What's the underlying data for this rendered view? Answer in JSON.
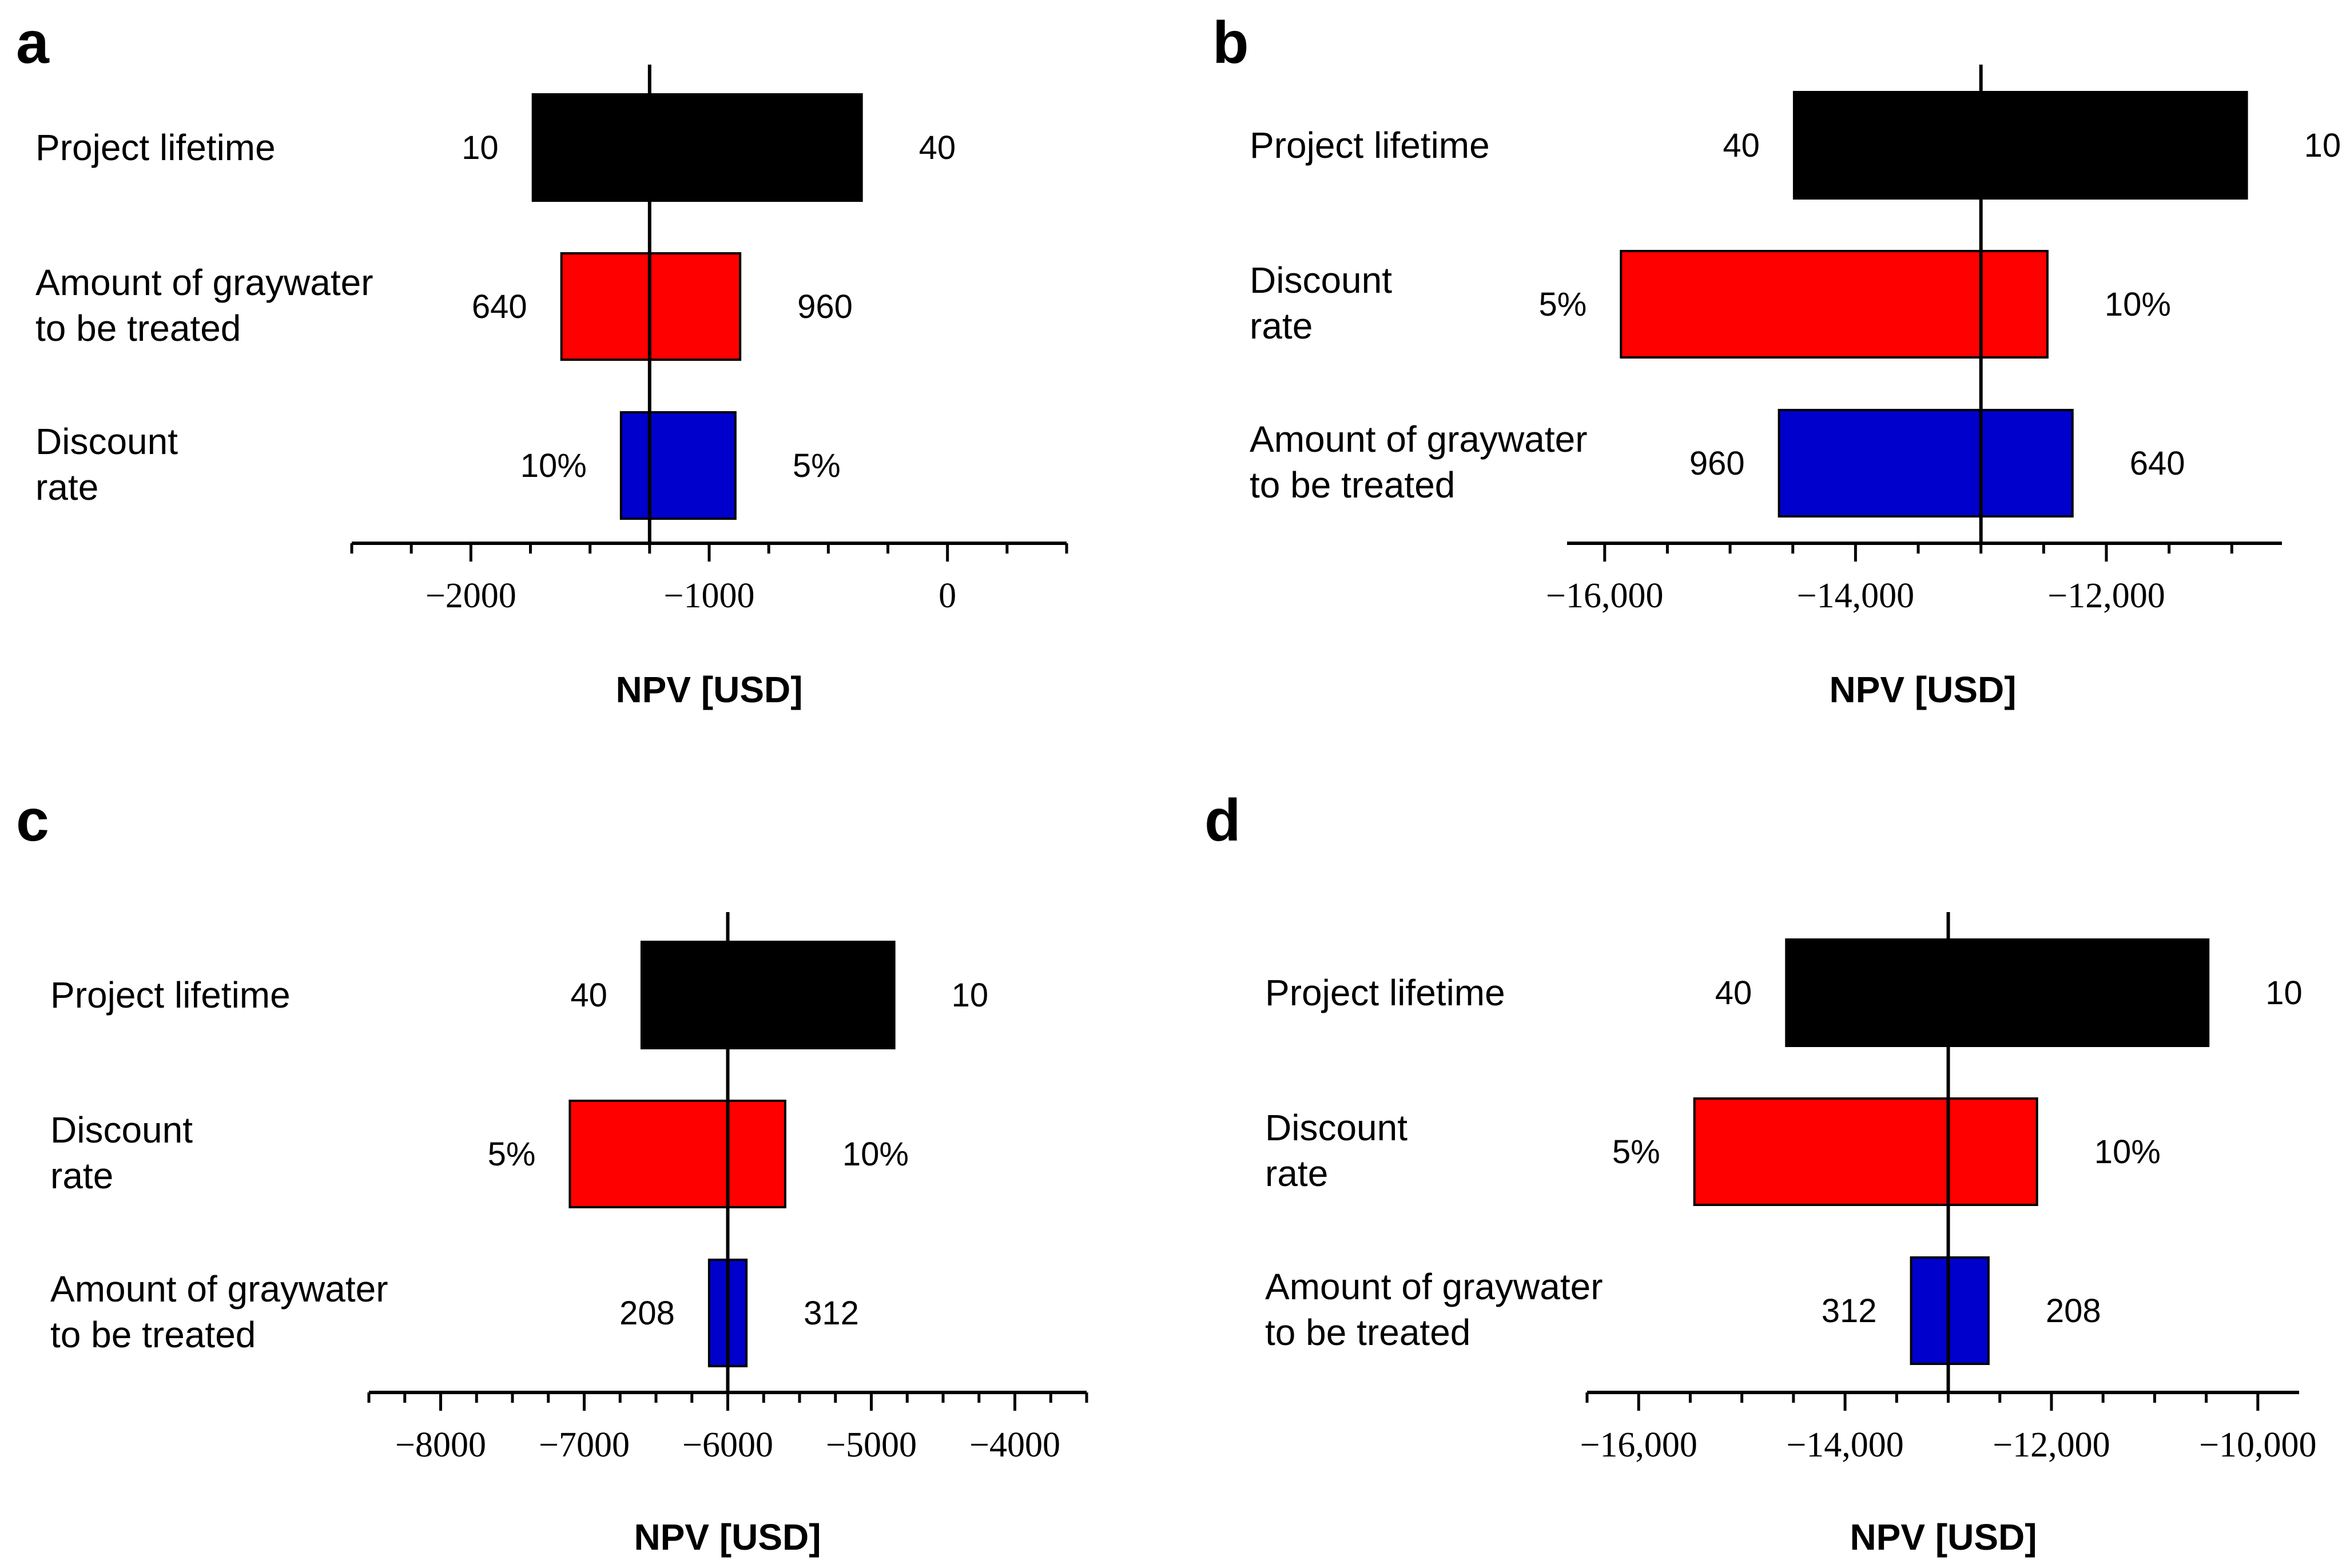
{
  "colors": {
    "black": "#000000",
    "red": "#ff0000",
    "blue": "#0000cc"
  },
  "chart_data": [
    {
      "panel": "a",
      "type": "bar",
      "orientation": "horizontal",
      "subtype": "tornado",
      "xlabel": "NPV [USD]",
      "xlim": [
        -2500,
        500
      ],
      "base": -1250,
      "xticks": [
        -2000,
        -1000,
        0
      ],
      "xticklabels": [
        "−2000",
        "−1000",
        "0"
      ],
      "minor_step": 250,
      "bars": [
        {
          "label_lines": [
            "Project lifetime"
          ],
          "low": -1740,
          "high": -360,
          "left_text": "10",
          "right_text": "40",
          "color": "#000000"
        },
        {
          "label_lines": [
            "Amount of graywater",
            "to be treated"
          ],
          "low": -1620,
          "high": -870,
          "left_text": "640",
          "right_text": "960",
          "color": "#ff0000"
        },
        {
          "label_lines": [
            "Discount",
            "rate"
          ],
          "low": -1370,
          "high": -890,
          "left_text": "10%",
          "right_text": "5%",
          "color": "#0000cc"
        }
      ]
    },
    {
      "panel": "b",
      "type": "bar",
      "orientation": "horizontal",
      "subtype": "tornado",
      "xlabel": "NPV [USD]",
      "xlim": [
        -16300,
        -10600
      ],
      "base": -13000,
      "xticks": [
        -16000,
        -14000,
        -12000
      ],
      "xticklabels": [
        "−16,000",
        "−14,000",
        "−12,000"
      ],
      "minor_step": 500,
      "bars": [
        {
          "label_lines": [
            "Project lifetime"
          ],
          "low": -14490,
          "high": -10880,
          "left_text": "40",
          "right_text": "10",
          "color": "#000000"
        },
        {
          "label_lines": [
            "Discount",
            "rate"
          ],
          "low": -15870,
          "high": -12470,
          "left_text": "5%",
          "right_text": "10%",
          "color": "#ff0000"
        },
        {
          "label_lines": [
            "Amount of graywater",
            "to be treated"
          ],
          "low": -14610,
          "high": -12270,
          "left_text": "960",
          "right_text": "640",
          "color": "#0000cc"
        }
      ]
    },
    {
      "panel": "c",
      "type": "bar",
      "orientation": "horizontal",
      "subtype": "tornado",
      "xlabel": "NPV [USD]",
      "xlim": [
        -8500,
        -3500
      ],
      "base": -6000,
      "xticks": [
        -8000,
        -7000,
        -6000,
        -5000,
        -4000
      ],
      "xticklabels": [
        "−8000",
        "−7000",
        "−6000",
        "−5000",
        "−4000"
      ],
      "minor_step": 250,
      "bars": [
        {
          "label_lines": [
            "Project lifetime"
          ],
          "low": -6600,
          "high": -4840,
          "left_text": "40",
          "right_text": "10",
          "color": "#000000"
        },
        {
          "label_lines": [
            "Discount",
            "rate"
          ],
          "low": -7100,
          "high": -5600,
          "left_text": "5%",
          "right_text": "10%",
          "color": "#ff0000"
        },
        {
          "label_lines": [
            "Amount of graywater",
            "to be treated"
          ],
          "low": -6130,
          "high": -5870,
          "left_text": "208",
          "right_text": "312",
          "color": "#0000cc"
        }
      ]
    },
    {
      "panel": "d",
      "type": "bar",
      "orientation": "horizontal",
      "subtype": "tornado",
      "xlabel": "NPV [USD]",
      "xlim": [
        -16500,
        -9600
      ],
      "base": -13000,
      "xticks": [
        -16000,
        -14000,
        -12000,
        -10000
      ],
      "xticklabels": [
        "−16,000",
        "−14,000",
        "−12,000",
        "−10,000"
      ],
      "minor_step": 500,
      "bars": [
        {
          "label_lines": [
            "Project lifetime"
          ],
          "low": -14570,
          "high": -10480,
          "left_text": "40",
          "right_text": "10",
          "color": "#000000"
        },
        {
          "label_lines": [
            "Discount",
            "rate"
          ],
          "low": -15460,
          "high": -12140,
          "left_text": "5%",
          "right_text": "10%",
          "color": "#ff0000"
        },
        {
          "label_lines": [
            "Amount of graywater",
            "to be treated"
          ],
          "low": -13360,
          "high": -12610,
          "left_text": "312",
          "right_text": "208",
          "color": "#0000cc"
        }
      ]
    }
  ]
}
